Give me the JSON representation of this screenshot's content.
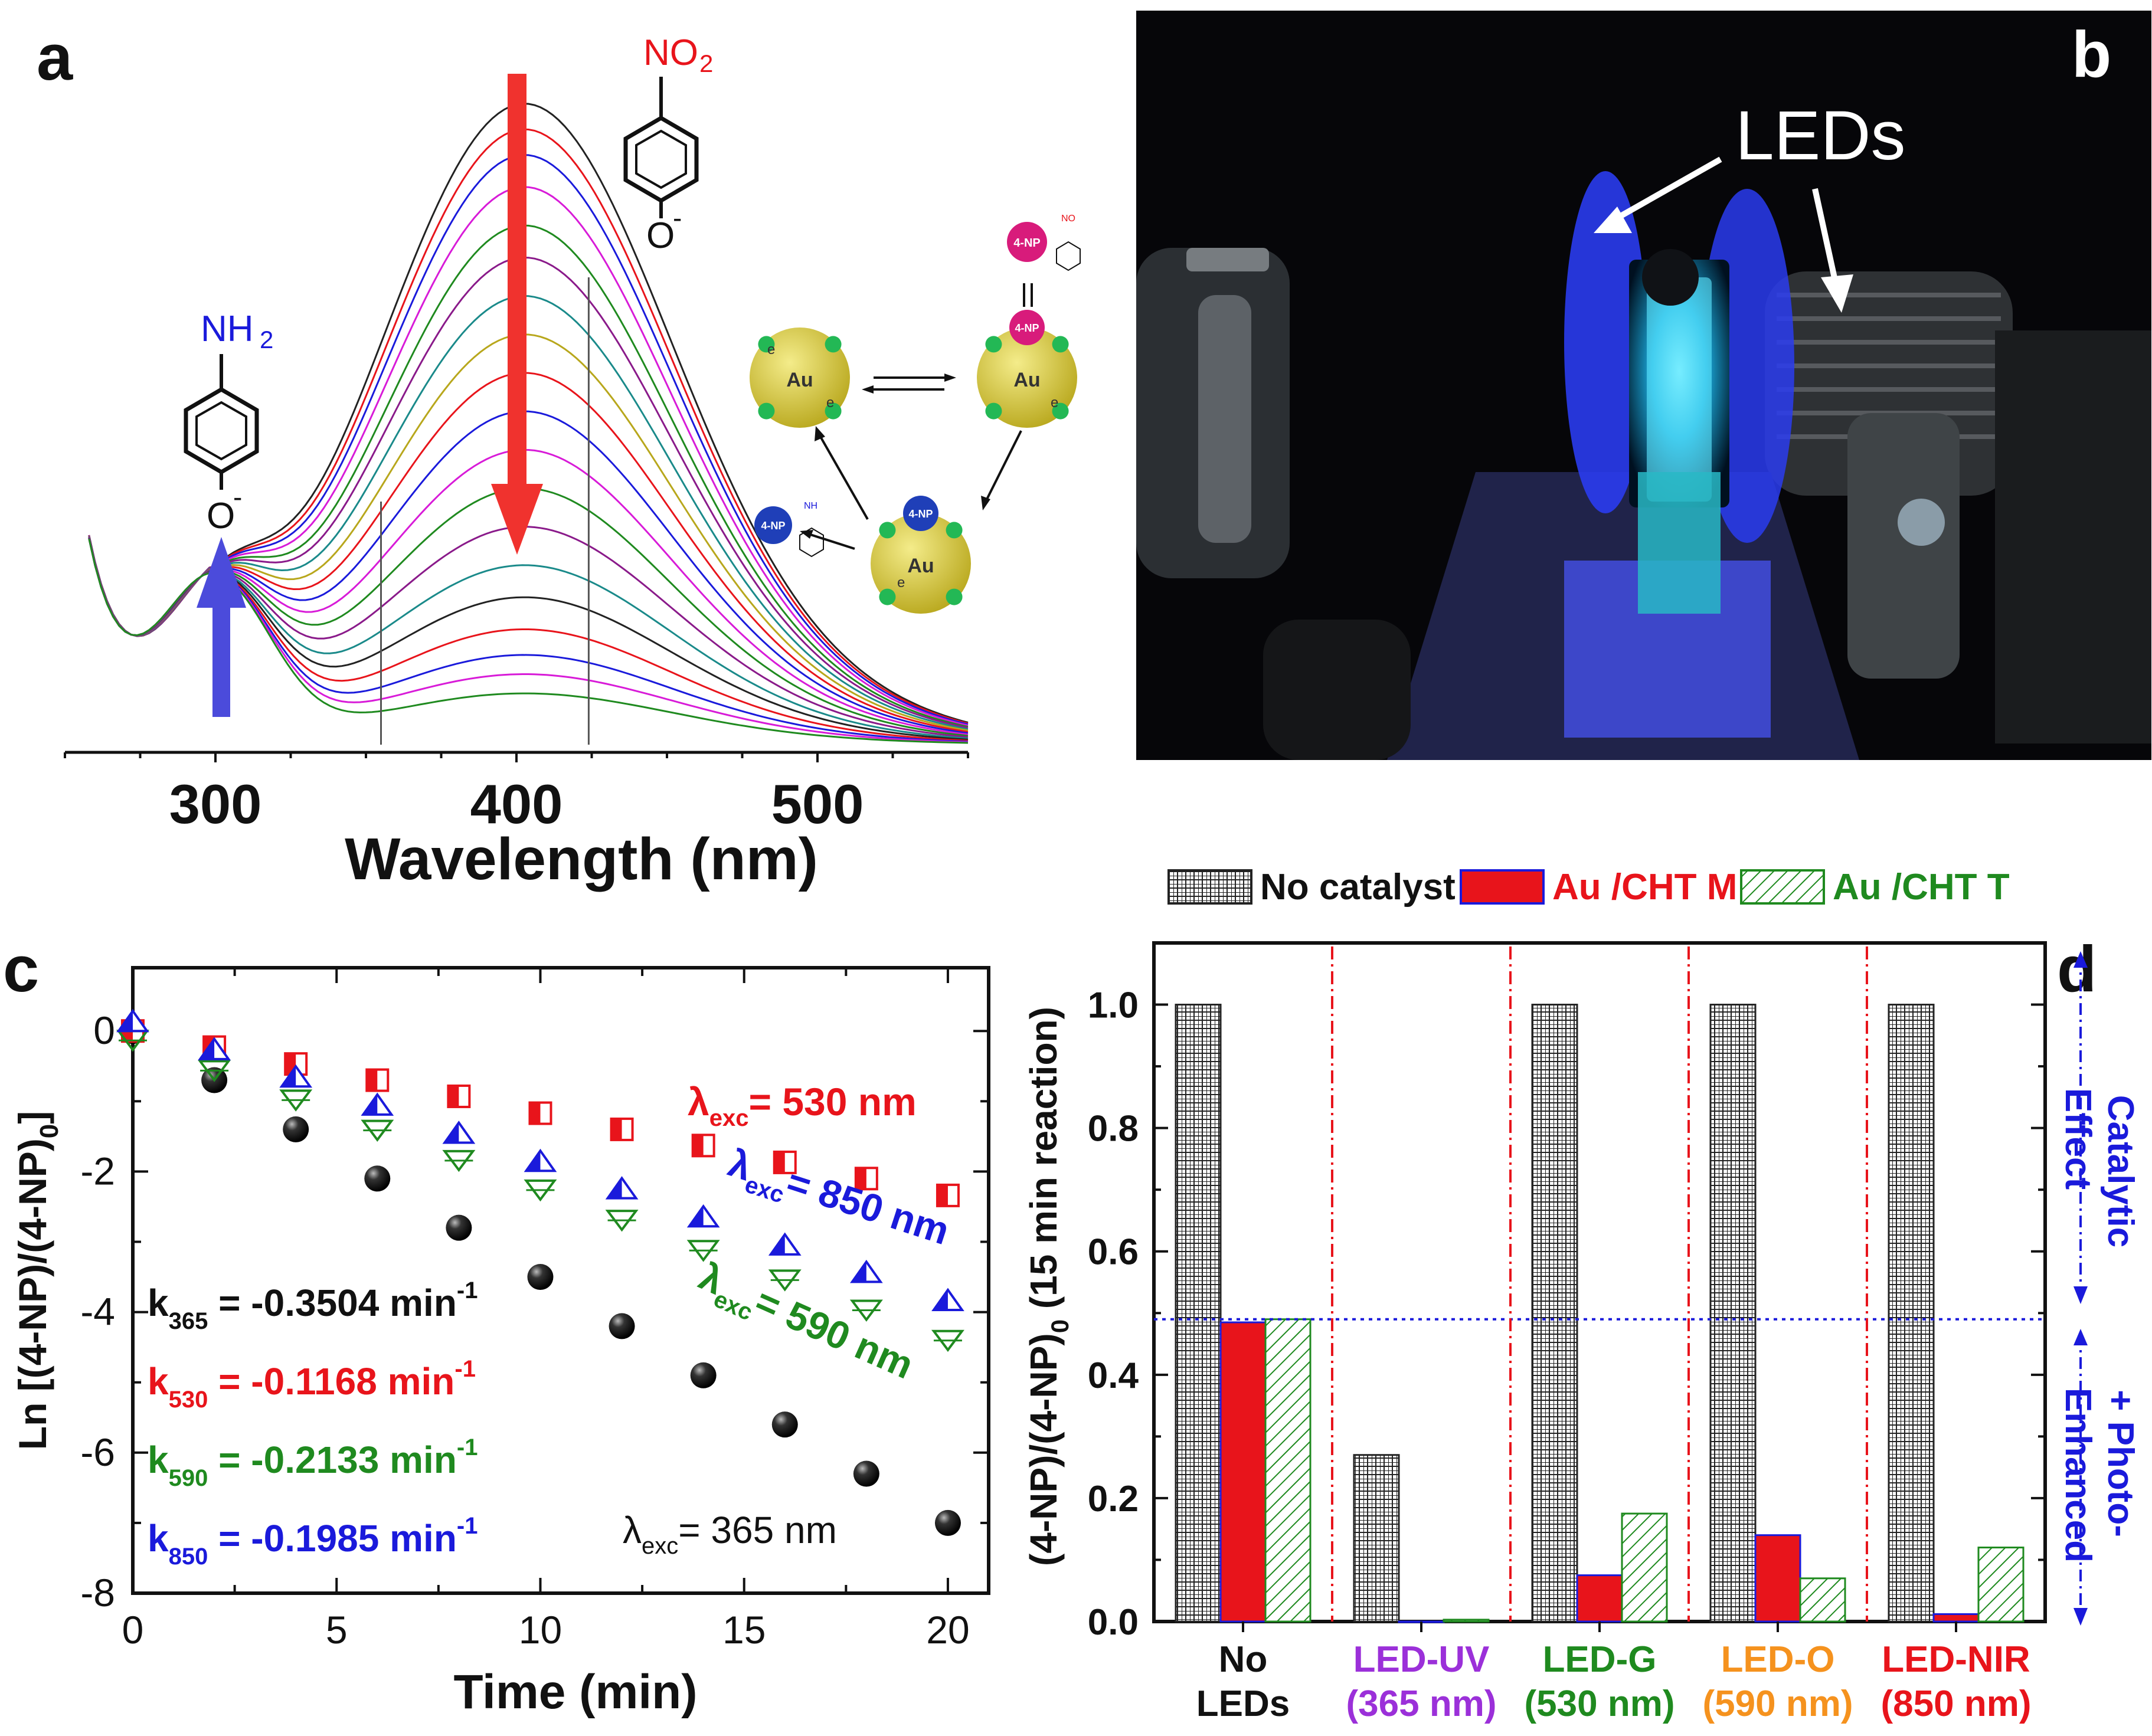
{
  "panels": {
    "a": "a",
    "b": "b",
    "c": "c",
    "d": "d"
  },
  "panel_a_labels": {
    "nitro_group": "NO",
    "nitro_sub": "2",
    "amine_group": "NH",
    "amine_sub": "2",
    "phenolate": "O",
    "minus": "-",
    "au": "Au",
    "electron": "e",
    "np": "4-NP"
  },
  "panel_b": {
    "leds_label": "LEDs"
  },
  "panel_c_labels": {
    "lambda_530": "= 530 nm",
    "lambda_850": "= 850 nm",
    "lambda_590": "= 590 nm",
    "lambda_365": "= 365 nm",
    "lambda_symbol": "λ",
    "exc": "exc",
    "k": "k",
    "min_unit": "min",
    "minus_one": "-1",
    "rate_constants": [
      {
        "sub": "365",
        "value": " = -0.3504 ",
        "color": "#111111"
      },
      {
        "sub": "530",
        "value": " = -0.1168 ",
        "color": "#e8141b"
      },
      {
        "sub": "590",
        "value": " = -0.2133 ",
        "color": "#1f8a1f"
      },
      {
        "sub": "850",
        "value": " = -0.1985 ",
        "color": "#1a1adb"
      }
    ]
  },
  "panel_d_labels": {
    "catalytic": "Catalytic",
    "effect": "Effect",
    "photo": "+ Photo-",
    "enhanced": "Enhanced",
    "ylabel_main": "(4-NP)/(4-NP)",
    "ylabel_sub": "0",
    "ylabel_tail": " (15 min reaction)"
  },
  "colors": {
    "red": "#e8141b",
    "blue": "#1a1adb",
    "green": "#1f8a1f",
    "purple": "#9b30d9",
    "orange": "#f5921e",
    "black": "#111111"
  },
  "chart_data": [
    {
      "id": "a",
      "type": "line",
      "title": "",
      "xlabel": "Wavelength (nm)",
      "ylabel": "",
      "xlim": [
        250,
        550
      ],
      "x_ticks": [
        300,
        400,
        500
      ],
      "series_count": 19,
      "peak_wavelength": 400,
      "peak_values": [
        1.0,
        0.96,
        0.92,
        0.87,
        0.81,
        0.76,
        0.7,
        0.64,
        0.58,
        0.52,
        0.46,
        0.4,
        0.34,
        0.28,
        0.23,
        0.18,
        0.14,
        0.11,
        0.08
      ]
    },
    {
      "id": "c",
      "type": "scatter",
      "title": "",
      "xlabel": "Time (min)",
      "ylabel": "Ln [(4-NP)/(4-NP)0]",
      "xlim": [
        0,
        21
      ],
      "ylim": [
        -8,
        0.9
      ],
      "x_ticks": [
        0,
        5,
        10,
        15,
        20
      ],
      "y_ticks": [
        0,
        -2,
        -4,
        -6,
        -8
      ],
      "x": [
        0,
        2,
        4,
        6,
        8,
        10,
        12,
        14,
        16,
        18,
        20
      ],
      "series": [
        {
          "name": "λexc = 365 nm",
          "color": "#111111",
          "marker": "sphere",
          "values": [
            0,
            -0.7,
            -1.4,
            -2.1,
            -2.8,
            -3.5,
            -4.2,
            -4.9,
            -5.6,
            -6.3,
            -7.0
          ]
        },
        {
          "name": "λexc = 530 nm",
          "color": "#e8141b",
          "marker": "half-square",
          "values": [
            0,
            -0.23,
            -0.47,
            -0.7,
            -0.93,
            -1.17,
            -1.4,
            -1.63,
            -1.87,
            -2.1,
            -2.34
          ]
        },
        {
          "name": "λexc = 590 nm",
          "color": "#1f8a1f",
          "marker": "down-triangle",
          "values": [
            0,
            -0.43,
            -0.85,
            -1.28,
            -1.71,
            -2.13,
            -2.56,
            -2.99,
            -3.41,
            -3.84,
            -4.27
          ]
        },
        {
          "name": "λexc = 850 nm",
          "color": "#1a1adb",
          "marker": "up-triangle",
          "values": [
            0,
            -0.4,
            -0.79,
            -1.19,
            -1.59,
            -1.99,
            -2.38,
            -2.78,
            -3.18,
            -3.57,
            -3.97
          ]
        }
      ]
    },
    {
      "id": "d",
      "type": "bar",
      "title": "",
      "xlabel": "",
      "ylabel": "(4-NP)/(4-NP)0 (15 min reaction)",
      "ylim": [
        0,
        1.1
      ],
      "y_ticks": [
        0.0,
        0.2,
        0.4,
        0.6,
        0.8,
        1.0
      ],
      "reference_line": 0.49,
      "categories": [
        {
          "line1": "No",
          "line2": "LEDs",
          "color": "#111111"
        },
        {
          "line1": "LED-UV",
          "line2": "(365 nm)",
          "color": "#9b30d9"
        },
        {
          "line1": "LED-G",
          "line2": "(530 nm)",
          "color": "#1f8a1f"
        },
        {
          "line1": "LED-O",
          "line2": "(590 nm)",
          "color": "#f5921e"
        },
        {
          "line1": "LED-NIR",
          "line2": "(850 nm)",
          "color": "#e8141b"
        }
      ],
      "legend": [
        {
          "label": "No catalyst",
          "color": "#111111"
        },
        {
          "label": "Au /CHT M",
          "color": "#e8141b"
        },
        {
          "label": "Au /CHT T",
          "color": "#1f8a1f"
        }
      ],
      "series": [
        {
          "name": "No catalyst",
          "values": [
            1.0,
            0.27,
            1.0,
            1.0,
            1.0
          ]
        },
        {
          "name": "Au /CHT M",
          "values": [
            0.485,
            0.0,
            0.075,
            0.14,
            0.012
          ]
        },
        {
          "name": "Au /CHT T",
          "values": [
            0.49,
            0.003,
            0.175,
            0.07,
            0.12
          ]
        }
      ]
    }
  ]
}
